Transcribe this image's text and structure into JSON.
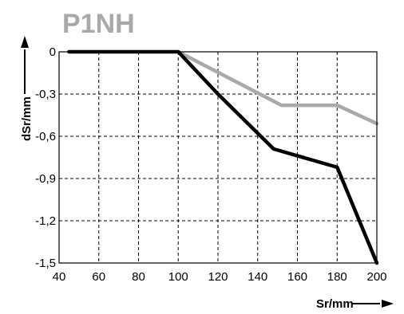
{
  "chart_data": {
    "type": "line",
    "title": "P1NH",
    "xlabel": "Sr/mm",
    "ylabel": "dSr/mm",
    "xlim": [
      40,
      200
    ],
    "ylim": [
      -1.5,
      0
    ],
    "x_ticks": [
      40,
      60,
      80,
      100,
      120,
      140,
      160,
      180,
      200
    ],
    "y_ticks": [
      0,
      -0.3,
      -0.6,
      -0.9,
      -1.2,
      -1.5
    ],
    "x_tick_labels": [
      "40",
      "60",
      "80",
      "100",
      "120",
      "140",
      "160",
      "180",
      "200"
    ],
    "y_tick_labels": [
      "0",
      "-0,3",
      "-0,6",
      "-0,9",
      "-1,2",
      "-1,5"
    ],
    "grid": true,
    "series": [
      {
        "color": "#000000",
        "points": [
          [
            45,
            0
          ],
          [
            100,
            0
          ],
          [
            120,
            -0.3
          ],
          [
            148,
            -0.69
          ],
          [
            180,
            -0.82
          ],
          [
            200,
            -1.5
          ]
        ]
      },
      {
        "color": "#a9a9a9",
        "points": [
          [
            100,
            0
          ],
          [
            152,
            -0.38
          ],
          [
            180,
            -0.38
          ],
          [
            200,
            -0.51
          ]
        ]
      }
    ]
  }
}
